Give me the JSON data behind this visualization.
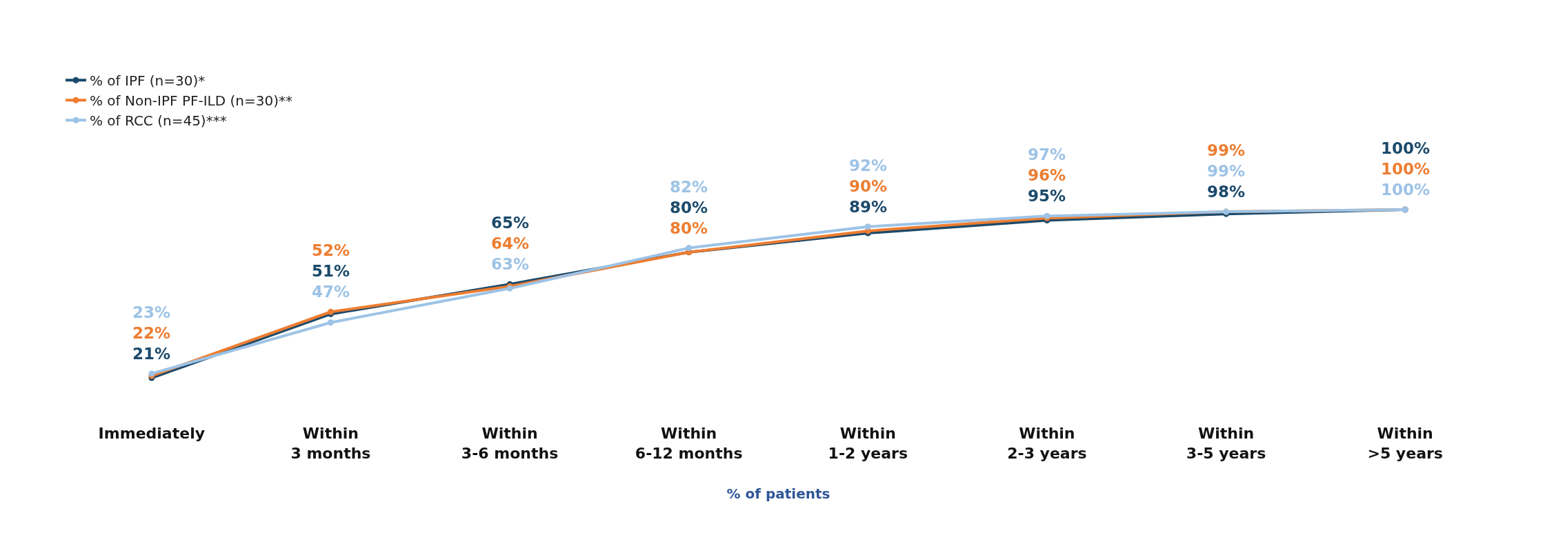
{
  "chart_data": {
    "type": "line",
    "xlabel": "% of patients",
    "categories": [
      "Immediately",
      "Within\n3 months",
      "Within\n3-6 months",
      "Within\n6-12 months",
      "Within\n1-2 years",
      "Within\n2-3 years",
      "Within\n3-5 years",
      "Within\n>5 years"
    ],
    "series": [
      {
        "name": "% of IPF (n=30)*",
        "color": "#1b4a6b",
        "values": [
          21,
          51,
          65,
          80,
          89,
          95,
          98,
          100
        ],
        "value_labels": [
          "21%",
          "51%",
          "65%",
          "80%",
          "89%",
          "95%",
          "98%",
          "100%"
        ]
      },
      {
        "name": "% of Non-IPF PF-ILD (n=30)**",
        "color": "#ed7d31",
        "values": [
          22,
          52,
          64,
          80,
          90,
          96,
          99,
          100
        ],
        "value_labels": [
          "22%",
          "52%",
          "64%",
          "80%",
          "90%",
          "96%",
          "99%",
          "100%"
        ]
      },
      {
        "name": "% of RCC (n=45)***",
        "color": "#9dc3e6",
        "values": [
          23,
          47,
          63,
          82,
          92,
          97,
          99,
          100
        ],
        "value_labels": [
          "23%",
          "47%",
          "63%",
          "82%",
          "92%",
          "97%",
          "99%",
          "100%"
        ]
      }
    ],
    "marker": "circle",
    "legend": "top left"
  }
}
